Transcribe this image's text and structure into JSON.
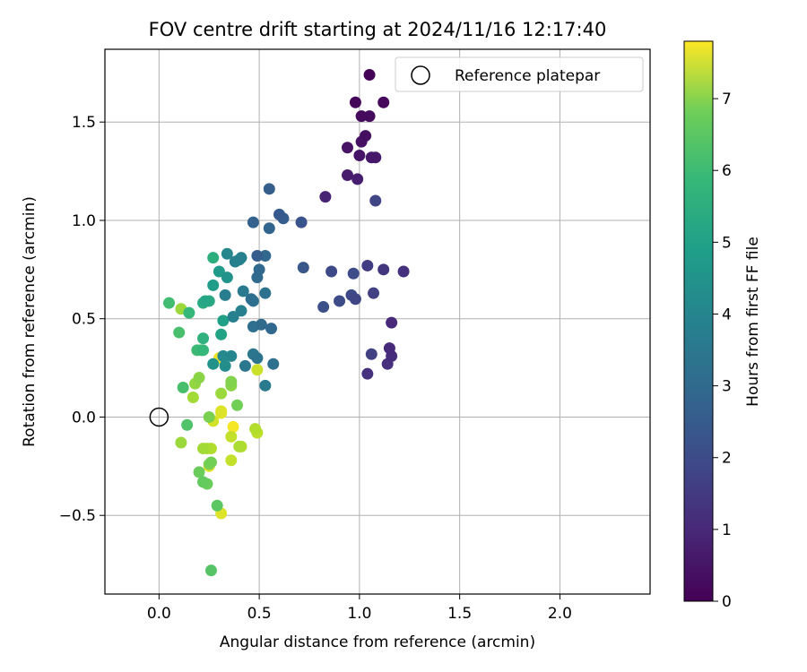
{
  "chart_data": {
    "type": "scatter",
    "title": "FOV centre drift starting at 2024/11/16 12:17:40",
    "xlabel": "Angular distance from reference (arcmin)",
    "ylabel": "Rotation from reference (arcmin)",
    "xlim": [
      -0.27,
      2.45
    ],
    "ylim": [
      -0.9,
      1.87
    ],
    "xticks": [
      0.0,
      0.5,
      1.0,
      1.5,
      2.0
    ],
    "xtick_labels": [
      "0.0",
      "0.5",
      "1.0",
      "1.5",
      "2.0"
    ],
    "yticks": [
      -0.5,
      0.0,
      0.5,
      1.0,
      1.5
    ],
    "ytick_labels": [
      "−0.5",
      "0.0",
      "0.5",
      "1.0",
      "1.5"
    ],
    "grid": true,
    "legend": {
      "placement": "top-right",
      "entries": [
        "Reference platepar"
      ]
    },
    "reference_point": {
      "x": 0.0,
      "y": 0.0,
      "label": "Reference platepar"
    },
    "colorbar": {
      "label": "Hours from first FF file",
      "range": [
        0,
        7.8
      ],
      "ticks": [
        0,
        1,
        2,
        3,
        4,
        5,
        6,
        7
      ],
      "tick_labels": [
        "0",
        "1",
        "2",
        "3",
        "4",
        "5",
        "6",
        "7"
      ],
      "colormap": "viridis"
    },
    "points": [
      {
        "x": 1.05,
        "y": 1.74,
        "h": 0.05
      },
      {
        "x": 0.98,
        "y": 1.6,
        "h": 0.1
      },
      {
        "x": 1.12,
        "y": 1.6,
        "h": 0.15
      },
      {
        "x": 1.01,
        "y": 1.53,
        "h": 0.2
      },
      {
        "x": 1.05,
        "y": 1.53,
        "h": 0.25
      },
      {
        "x": 1.03,
        "y": 1.43,
        "h": 0.3
      },
      {
        "x": 1.01,
        "y": 1.4,
        "h": 0.35
      },
      {
        "x": 0.94,
        "y": 1.37,
        "h": 0.4
      },
      {
        "x": 1.0,
        "y": 1.33,
        "h": 0.45
      },
      {
        "x": 1.06,
        "y": 1.32,
        "h": 0.5
      },
      {
        "x": 1.08,
        "y": 1.32,
        "h": 0.55
      },
      {
        "x": 0.94,
        "y": 1.23,
        "h": 0.6
      },
      {
        "x": 0.99,
        "y": 1.21,
        "h": 0.65
      },
      {
        "x": 0.83,
        "y": 1.12,
        "h": 0.75
      },
      {
        "x": 1.08,
        "y": 1.1,
        "h": 1.6
      },
      {
        "x": 1.16,
        "y": 0.48,
        "h": 0.9
      },
      {
        "x": 1.15,
        "y": 0.35,
        "h": 0.95
      },
      {
        "x": 1.16,
        "y": 0.31,
        "h": 1.0
      },
      {
        "x": 1.14,
        "y": 0.27,
        "h": 1.05
      },
      {
        "x": 1.04,
        "y": 0.22,
        "h": 1.1
      },
      {
        "x": 1.06,
        "y": 0.32,
        "h": 1.5
      },
      {
        "x": 1.22,
        "y": 0.74,
        "h": 1.1
      },
      {
        "x": 1.12,
        "y": 0.75,
        "h": 1.2
      },
      {
        "x": 1.04,
        "y": 0.77,
        "h": 1.4
      },
      {
        "x": 0.86,
        "y": 0.74,
        "h": 1.7
      },
      {
        "x": 1.07,
        "y": 0.63,
        "h": 1.5
      },
      {
        "x": 0.96,
        "y": 0.62,
        "h": 1.7
      },
      {
        "x": 0.98,
        "y": 0.6,
        "h": 1.6
      },
      {
        "x": 0.9,
        "y": 0.59,
        "h": 1.8
      },
      {
        "x": 0.97,
        "y": 0.73,
        "h": 1.8
      },
      {
        "x": 0.82,
        "y": 0.56,
        "h": 1.9
      },
      {
        "x": 0.71,
        "y": 0.99,
        "h": 2.0
      },
      {
        "x": 0.72,
        "y": 0.76,
        "h": 2.1
      },
      {
        "x": 0.55,
        "y": 1.16,
        "h": 2.3
      },
      {
        "x": 0.6,
        "y": 1.03,
        "h": 2.2
      },
      {
        "x": 0.62,
        "y": 1.01,
        "h": 2.3
      },
      {
        "x": 0.47,
        "y": 0.99,
        "h": 2.4
      },
      {
        "x": 0.55,
        "y": 0.96,
        "h": 2.5
      },
      {
        "x": 0.49,
        "y": 0.82,
        "h": 2.3
      },
      {
        "x": 0.53,
        "y": 0.82,
        "h": 2.6
      },
      {
        "x": 0.5,
        "y": 0.75,
        "h": 2.6
      },
      {
        "x": 0.49,
        "y": 0.71,
        "h": 2.7
      },
      {
        "x": 0.46,
        "y": 0.6,
        "h": 2.8
      },
      {
        "x": 0.53,
        "y": 0.63,
        "h": 2.9
      },
      {
        "x": 0.47,
        "y": 0.59,
        "h": 2.9
      },
      {
        "x": 0.51,
        "y": 0.47,
        "h": 2.7
      },
      {
        "x": 0.56,
        "y": 0.45,
        "h": 2.6
      },
      {
        "x": 0.47,
        "y": 0.46,
        "h": 2.8
      },
      {
        "x": 0.57,
        "y": 0.27,
        "h": 2.9
      },
      {
        "x": 0.49,
        "y": 0.3,
        "h": 3.0
      },
      {
        "x": 0.47,
        "y": 0.32,
        "h": 3.1
      },
      {
        "x": 0.43,
        "y": 0.26,
        "h": 3.1
      },
      {
        "x": 0.53,
        "y": 0.16,
        "h": 3.2
      },
      {
        "x": 0.42,
        "y": 0.64,
        "h": 3.2
      },
      {
        "x": 0.33,
        "y": 0.62,
        "h": 3.3
      },
      {
        "x": 0.41,
        "y": 0.54,
        "h": 3.4
      },
      {
        "x": 0.37,
        "y": 0.51,
        "h": 3.4
      },
      {
        "x": 0.38,
        "y": 0.79,
        "h": 3.4
      },
      {
        "x": 0.4,
        "y": 0.8,
        "h": 3.5
      },
      {
        "x": 0.41,
        "y": 0.81,
        "h": 3.4
      },
      {
        "x": 0.34,
        "y": 0.83,
        "h": 3.6
      },
      {
        "x": 0.36,
        "y": 0.31,
        "h": 3.6
      },
      {
        "x": 0.32,
        "y": 0.31,
        "h": 3.7
      },
      {
        "x": 0.33,
        "y": 0.26,
        "h": 3.8
      },
      {
        "x": 0.27,
        "y": 0.27,
        "h": 4.0
      },
      {
        "x": 0.34,
        "y": 0.71,
        "h": 4.0
      },
      {
        "x": 0.3,
        "y": 0.74,
        "h": 4.2
      },
      {
        "x": 0.27,
        "y": 0.67,
        "h": 4.3
      },
      {
        "x": 0.32,
        "y": 0.49,
        "h": 4.4
      },
      {
        "x": 0.31,
        "y": 0.42,
        "h": 4.5
      },
      {
        "x": 0.23,
        "y": 0.59,
        "h": 4.6
      },
      {
        "x": 0.25,
        "y": 0.59,
        "h": 4.7
      },
      {
        "x": 0.22,
        "y": 0.58,
        "h": 4.8
      },
      {
        "x": 0.27,
        "y": 0.81,
        "h": 4.9
      },
      {
        "x": 0.22,
        "y": 0.4,
        "h": 5.0
      },
      {
        "x": 0.19,
        "y": 0.34,
        "h": 5.3
      },
      {
        "x": 0.21,
        "y": 0.34,
        "h": 5.4
      },
      {
        "x": 0.22,
        "y": 0.34,
        "h": 5.2
      },
      {
        "x": 0.15,
        "y": 0.53,
        "h": 5.2
      },
      {
        "x": 0.05,
        "y": 0.58,
        "h": 5.4
      },
      {
        "x": 0.1,
        "y": 0.43,
        "h": 5.5
      },
      {
        "x": 0.12,
        "y": 0.15,
        "h": 5.5
      },
      {
        "x": 0.14,
        "y": -0.04,
        "h": 5.6
      },
      {
        "x": 0.26,
        "y": -0.78,
        "h": 5.7
      },
      {
        "x": 0.29,
        "y": -0.45,
        "h": 5.8
      },
      {
        "x": 0.22,
        "y": -0.33,
        "h": 5.9
      },
      {
        "x": 0.24,
        "y": -0.34,
        "h": 6.0
      },
      {
        "x": 0.2,
        "y": -0.28,
        "h": 6.0
      },
      {
        "x": 0.26,
        "y": -0.23,
        "h": 6.1
      },
      {
        "x": 0.25,
        "y": -0.24,
        "h": 6.2
      },
      {
        "x": 0.39,
        "y": 0.06,
        "h": 6.1
      },
      {
        "x": 0.25,
        "y": 0.0,
        "h": 6.2
      },
      {
        "x": 0.36,
        "y": 0.18,
        "h": 6.3
      },
      {
        "x": 0.36,
        "y": 0.16,
        "h": 6.4
      },
      {
        "x": 0.2,
        "y": 0.2,
        "h": 6.4
      },
      {
        "x": 0.18,
        "y": 0.17,
        "h": 6.5
      },
      {
        "x": 0.17,
        "y": 0.1,
        "h": 6.7
      },
      {
        "x": 0.31,
        "y": 0.12,
        "h": 6.6
      },
      {
        "x": 0.11,
        "y": 0.55,
        "h": 6.6
      },
      {
        "x": 0.11,
        "y": -0.13,
        "h": 6.6
      },
      {
        "x": 0.22,
        "y": -0.16,
        "h": 6.7
      },
      {
        "x": 0.24,
        "y": -0.16,
        "h": 6.8
      },
      {
        "x": 0.26,
        "y": -0.16,
        "h": 6.9
      },
      {
        "x": 0.4,
        "y": -0.15,
        "h": 6.8
      },
      {
        "x": 0.41,
        "y": -0.15,
        "h": 6.9
      },
      {
        "x": 0.48,
        "y": -0.06,
        "h": 6.9
      },
      {
        "x": 0.49,
        "y": -0.08,
        "h": 7.0
      },
      {
        "x": 0.36,
        "y": -0.1,
        "h": 7.1
      },
      {
        "x": 0.36,
        "y": -0.22,
        "h": 7.1
      },
      {
        "x": 0.49,
        "y": 0.24,
        "h": 7.2
      },
      {
        "x": 0.27,
        "y": -0.02,
        "h": 7.3
      },
      {
        "x": 0.31,
        "y": 0.03,
        "h": 7.4
      },
      {
        "x": 0.31,
        "y": 0.02,
        "h": 7.5
      },
      {
        "x": 0.3,
        "y": 0.3,
        "h": 7.6
      },
      {
        "x": 0.31,
        "y": -0.49,
        "h": 7.4
      },
      {
        "x": 0.25,
        "y": -0.25,
        "h": 7.5
      },
      {
        "x": 0.37,
        "y": -0.05,
        "h": 7.7
      }
    ]
  }
}
